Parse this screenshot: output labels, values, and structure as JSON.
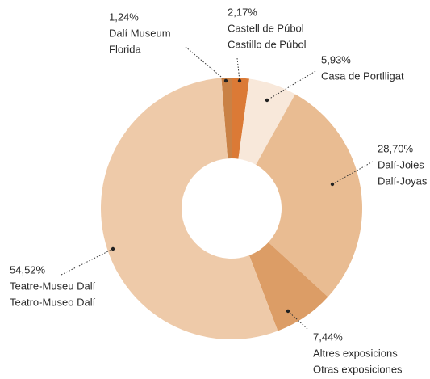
{
  "chart_data": {
    "type": "donut",
    "categories": [
      [
        "Dalí Museum",
        "Florida"
      ],
      [
        "Castell de Púbol",
        "Castillo de Púbol"
      ],
      [
        "Casa de Portlligat"
      ],
      [
        "Dalí-Joies",
        "Dalí-Joyas"
      ],
      [
        "Altres exposicions",
        "Otras exposiciones"
      ],
      [
        "Teatre-Museu Dalí",
        "Teatro-Museo Dalí"
      ]
    ],
    "values": [
      1.24,
      2.17,
      5.93,
      28.7,
      7.44,
      54.52
    ],
    "value_labels": [
      "1,24%",
      "2,17%",
      "5,93%",
      "28,70%",
      "7,44%",
      "54,52%"
    ],
    "colors": [
      "#c98145",
      "#db7a36",
      "#f8e8da",
      "#e9bc92",
      "#dc9d66",
      "#eecaa9"
    ]
  }
}
